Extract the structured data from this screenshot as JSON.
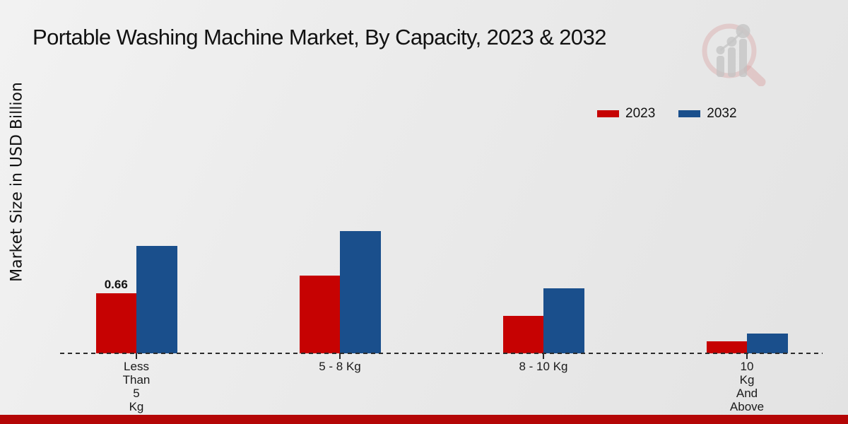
{
  "title": "Portable Washing Machine Market, By Capacity, 2023 & 2032",
  "y_axis_label": "Market Size in USD Billion",
  "legend": [
    {
      "label": "2023",
      "color": "#c60202"
    },
    {
      "label": "2032",
      "color": "#1a4f8c"
    }
  ],
  "footer": {
    "color": "#b40606"
  },
  "watermark_icon": "magnifier-bar-chart-logo",
  "chart_data": {
    "type": "bar",
    "title": "Portable Washing Machine Market, By Capacity, 2023 & 2032",
    "ylabel": "Market Size in USD Billion",
    "xlabel": "",
    "categories": [
      "Less Than 5 Kg",
      "5 - 8 Kg",
      "8 - 10 Kg",
      "10 Kg And Above"
    ],
    "category_display_lines": [
      [
        "Less",
        "Than",
        "5",
        "Kg"
      ],
      [
        "5 - 8 Kg"
      ],
      [
        "8 - 10 Kg"
      ],
      [
        "10",
        "Kg",
        "And",
        "Above"
      ]
    ],
    "series": [
      {
        "name": "2023",
        "color": "#c60202",
        "values": [
          0.66,
          0.85,
          0.41,
          0.13
        ]
      },
      {
        "name": "2032",
        "color": "#1a4f8c",
        "values": [
          1.18,
          1.34,
          0.71,
          0.22
        ]
      }
    ],
    "data_labels": [
      {
        "series": "2023",
        "category_index": 0,
        "text": "0.66"
      }
    ],
    "ylim": [
      0,
      3.1
    ],
    "grid": false,
    "legend_position": "top-right",
    "x_axis_style": "dashed-baseline",
    "y_ticks_visible": false
  }
}
